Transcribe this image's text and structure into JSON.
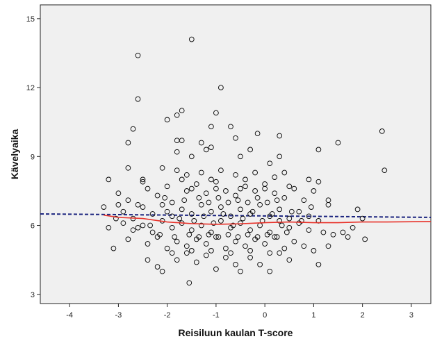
{
  "chart_data": {
    "type": "scatter",
    "xlabel": "Reisiluun kaulan T-score",
    "ylabel": "Kävelyaika",
    "xlim": [
      -4.6,
      3.4
    ],
    "ylim": [
      2.6,
      15.6
    ],
    "xticks": [
      -4,
      -3,
      -2,
      -1,
      0,
      1,
      2,
      3
    ],
    "yticks": [
      3,
      6,
      9,
      12,
      15
    ],
    "grid": false,
    "colors": {
      "plot_bg": "#f0f0f0",
      "points": "#000000",
      "loess": "#e8322a",
      "linear_fit": "#1a237e"
    },
    "points": [
      [
        -1.5,
        14.1
      ],
      [
        -2.6,
        13.4
      ],
      [
        -2.6,
        11.5
      ],
      [
        -0.9,
        12.0
      ],
      [
        -2.7,
        10.2
      ],
      [
        -1.7,
        11.0
      ],
      [
        -1.8,
        10.8
      ],
      [
        -2.0,
        10.6
      ],
      [
        -1.0,
        10.9
      ],
      [
        -1.1,
        10.3
      ],
      [
        -0.7,
        10.3
      ],
      [
        -0.15,
        10.0
      ],
      [
        0.3,
        9.9
      ],
      [
        -2.8,
        9.6
      ],
      [
        -1.8,
        9.7
      ],
      [
        -1.7,
        9.7
      ],
      [
        -0.6,
        9.8
      ],
      [
        -1.3,
        9.6
      ],
      [
        -1.2,
        9.3
      ],
      [
        -1.1,
        9.4
      ],
      [
        -0.3,
        9.3
      ],
      [
        1.5,
        9.6
      ],
      [
        2.4,
        10.1
      ],
      [
        2.45,
        8.4
      ],
      [
        1.1,
        9.3
      ],
      [
        -1.8,
        9.2
      ],
      [
        -1.5,
        9.0
      ],
      [
        -0.5,
        9.0
      ],
      [
        0.3,
        9.0
      ],
      [
        -3.2,
        8.0
      ],
      [
        -2.8,
        8.5
      ],
      [
        -2.5,
        8.0
      ],
      [
        -2.1,
        8.5
      ],
      [
        -1.8,
        8.4
      ],
      [
        -1.6,
        8.2
      ],
      [
        -1.3,
        8.3
      ],
      [
        -0.9,
        8.4
      ],
      [
        -0.6,
        8.2
      ],
      [
        -0.2,
        8.3
      ],
      [
        0.1,
        8.7
      ],
      [
        0.4,
        8.3
      ],
      [
        0.9,
        8.0
      ],
      [
        1.1,
        7.9
      ],
      [
        -3.0,
        7.4
      ],
      [
        -2.8,
        7.1
      ],
      [
        -2.4,
        7.6
      ],
      [
        -2.2,
        7.3
      ],
      [
        -1.9,
        7.0
      ],
      [
        -1.6,
        7.5
      ],
      [
        -1.4,
        7.8
      ],
      [
        -1.2,
        7.4
      ],
      [
        -1.0,
        7.9
      ],
      [
        -0.8,
        7.5
      ],
      [
        -0.6,
        7.3
      ],
      [
        -0.4,
        7.7
      ],
      [
        -0.2,
        7.5
      ],
      [
        0.0,
        7.8
      ],
      [
        0.2,
        7.4
      ],
      [
        0.4,
        7.2
      ],
      [
        0.6,
        7.6
      ],
      [
        0.8,
        7.1
      ],
      [
        1.0,
        7.5
      ],
      [
        1.3,
        7.1
      ],
      [
        -3.3,
        6.8
      ],
      [
        -2.9,
        6.6
      ],
      [
        -2.7,
        6.3
      ],
      [
        -2.5,
        6.8
      ],
      [
        -2.3,
        6.5
      ],
      [
        -2.1,
        6.9
      ],
      [
        -1.9,
        6.4
      ],
      [
        -1.7,
        6.7
      ],
      [
        -1.5,
        6.5
      ],
      [
        -1.3,
        6.9
      ],
      [
        -1.1,
        6.6
      ],
      [
        -0.9,
        6.8
      ],
      [
        -0.7,
        6.4
      ],
      [
        -0.5,
        6.7
      ],
      [
        -0.3,
        6.5
      ],
      [
        -0.1,
        6.9
      ],
      [
        0.1,
        6.4
      ],
      [
        0.3,
        6.7
      ],
      [
        0.5,
        6.3
      ],
      [
        0.7,
        6.6
      ],
      [
        0.9,
        6.4
      ],
      [
        1.1,
        6.2
      ],
      [
        1.9,
        6.7
      ],
      [
        -3.2,
        5.9
      ],
      [
        -2.9,
        6.1
      ],
      [
        -2.7,
        5.8
      ],
      [
        -2.5,
        6.0
      ],
      [
        -2.3,
        5.7
      ],
      [
        -2.1,
        6.2
      ],
      [
        -1.9,
        5.9
      ],
      [
        -1.7,
        6.1
      ],
      [
        -1.5,
        5.8
      ],
      [
        -1.3,
        6.0
      ],
      [
        -1.1,
        5.7
      ],
      [
        -0.9,
        6.2
      ],
      [
        -0.7,
        5.9
      ],
      [
        -0.5,
        6.1
      ],
      [
        -0.3,
        5.8
      ],
      [
        -0.1,
        6.0
      ],
      [
        0.1,
        5.7
      ],
      [
        0.3,
        6.2
      ],
      [
        0.5,
        5.9
      ],
      [
        0.7,
        6.1
      ],
      [
        0.9,
        5.8
      ],
      [
        1.2,
        5.7
      ],
      [
        1.4,
        5.6
      ],
      [
        1.6,
        5.7
      ],
      [
        1.8,
        5.9
      ],
      [
        2.05,
        5.4
      ],
      [
        -3.1,
        5.0
      ],
      [
        -2.8,
        5.4
      ],
      [
        -2.4,
        5.2
      ],
      [
        -2.2,
        5.5
      ],
      [
        -2.0,
        5.0
      ],
      [
        -1.8,
        5.3
      ],
      [
        -1.6,
        5.1
      ],
      [
        -1.4,
        5.4
      ],
      [
        -1.2,
        5.2
      ],
      [
        -1.0,
        5.5
      ],
      [
        -0.8,
        5.0
      ],
      [
        -0.6,
        5.3
      ],
      [
        -0.4,
        5.1
      ],
      [
        -0.2,
        5.4
      ],
      [
        0.0,
        5.2
      ],
      [
        0.2,
        5.5
      ],
      [
        0.4,
        5.0
      ],
      [
        0.6,
        5.3
      ],
      [
        0.8,
        5.1
      ],
      [
        1.0,
        4.9
      ],
      [
        1.3,
        5.1
      ],
      [
        -2.4,
        4.5
      ],
      [
        -2.2,
        4.2
      ],
      [
        -2.1,
        4.0
      ],
      [
        -1.8,
        4.5
      ],
      [
        -1.6,
        4.8
      ],
      [
        -1.4,
        4.4
      ],
      [
        -1.2,
        4.7
      ],
      [
        -1.0,
        4.1
      ],
      [
        -0.8,
        4.6
      ],
      [
        -0.6,
        4.3
      ],
      [
        -0.5,
        4.0
      ],
      [
        -0.3,
        4.6
      ],
      [
        -0.1,
        4.3
      ],
      [
        0.1,
        4.0
      ],
      [
        0.3,
        4.8
      ],
      [
        0.5,
        4.5
      ],
      [
        1.1,
        4.3
      ],
      [
        -1.55,
        3.5
      ],
      [
        -2.6,
        5.9
      ],
      [
        -2.35,
        6.0
      ],
      [
        -2.0,
        6.6
      ],
      [
        -1.75,
        6.3
      ],
      [
        -1.45,
        6.2
      ],
      [
        -1.25,
        6.4
      ],
      [
        -1.05,
        6.1
      ],
      [
        -0.85,
        6.5
      ],
      [
        -0.65,
        6.0
      ],
      [
        -0.45,
        6.3
      ],
      [
        -0.25,
        6.6
      ],
      [
        -0.05,
        6.2
      ],
      [
        0.15,
        6.5
      ],
      [
        0.35,
        6.0
      ],
      [
        0.55,
        6.6
      ],
      [
        0.75,
        6.2
      ],
      [
        -2.05,
        7.2
      ],
      [
        -1.65,
        7.1
      ],
      [
        -1.35,
        7.2
      ],
      [
        -1.15,
        7.0
      ],
      [
        -0.95,
        7.2
      ],
      [
        -0.75,
        7.0
      ],
      [
        -0.55,
        7.1
      ],
      [
        -0.35,
        7.0
      ],
      [
        -0.15,
        7.2
      ],
      [
        0.05,
        7.0
      ],
      [
        0.25,
        7.1
      ],
      [
        -2.15,
        5.6
      ],
      [
        -1.85,
        5.5
      ],
      [
        -1.55,
        5.6
      ],
      [
        -1.35,
        5.5
      ],
      [
        -1.15,
        5.6
      ],
      [
        -0.95,
        5.5
      ],
      [
        -0.75,
        5.6
      ],
      [
        -0.55,
        5.5
      ],
      [
        -0.35,
        5.6
      ],
      [
        -0.15,
        5.5
      ],
      [
        0.05,
        5.6
      ],
      [
        0.25,
        5.5
      ],
      [
        0.45,
        5.7
      ],
      [
        -1.9,
        4.8
      ],
      [
        -1.5,
        4.9
      ],
      [
        -1.1,
        4.9
      ],
      [
        -0.7,
        4.8
      ],
      [
        -0.3,
        4.9
      ],
      [
        0.1,
        4.8
      ],
      [
        -2.0,
        7.7
      ],
      [
        -1.5,
        7.6
      ],
      [
        -1.0,
        7.6
      ],
      [
        -0.5,
        7.6
      ],
      [
        0.0,
        7.6
      ],
      [
        0.5,
        7.7
      ],
      [
        -2.5,
        7.9
      ],
      [
        -1.7,
        8.0
      ],
      [
        -1.1,
        8.0
      ],
      [
        -0.4,
        8.0
      ],
      [
        0.2,
        8.1
      ],
      [
        -3.0,
        6.9
      ],
      [
        -2.6,
        6.9
      ],
      [
        0.95,
        6.8
      ],
      [
        1.3,
        6.9
      ],
      [
        1.7,
        5.5
      ],
      [
        2.0,
        6.3
      ],
      [
        -3.05,
        6.3
      ]
    ],
    "loess": [
      [
        -3.3,
        6.45
      ],
      [
        -3.0,
        6.35
      ],
      [
        -2.5,
        6.3
      ],
      [
        -2.0,
        6.15
      ],
      [
        -1.5,
        6.08
      ],
      [
        -1.0,
        6.05
      ],
      [
        -0.5,
        6.07
      ],
      [
        0.0,
        6.12
      ],
      [
        0.5,
        6.15
      ],
      [
        1.0,
        6.12
      ],
      [
        1.5,
        6.12
      ],
      [
        2.0,
        6.15
      ],
      [
        2.5,
        6.15
      ],
      [
        3.4,
        6.17
      ]
    ],
    "linear_fit": {
      "x0": -4.6,
      "y0": 6.5,
      "x1": 3.4,
      "y1": 6.35
    }
  }
}
